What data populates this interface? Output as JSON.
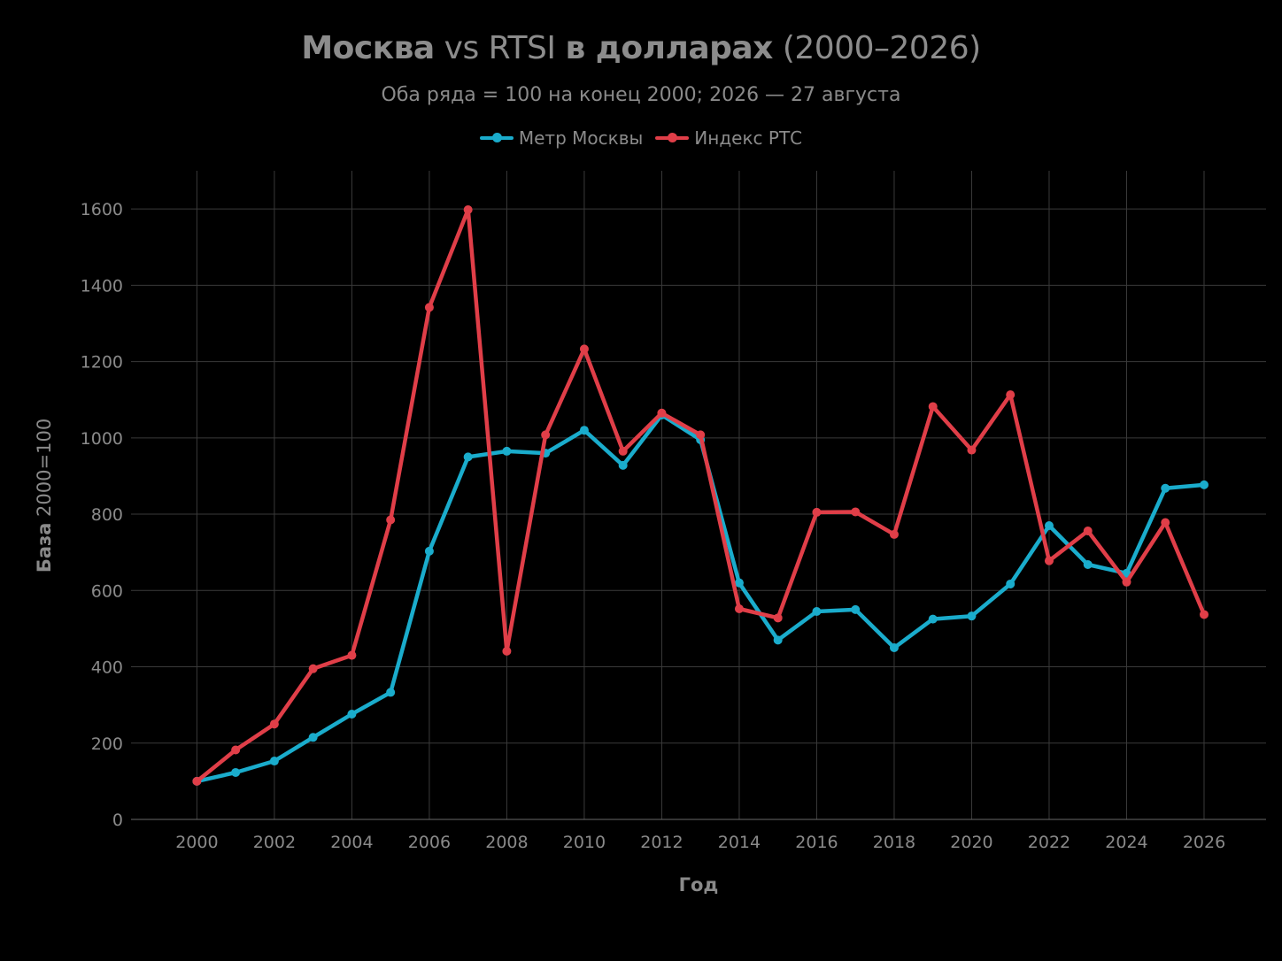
{
  "chart_data": {
    "type": "line",
    "title": {
      "part1": "Москва",
      "part2": " vs RTSI ",
      "part3": "в долларах",
      "part4": " (2000–2026)"
    },
    "subtitle": "Оба ряда = 100 на конец 2000; 2026 — 27 августа",
    "xlabel": "Год",
    "ylabel": {
      "bold": "База",
      "normal": " 2000=100"
    },
    "xlim": [
      1998.3,
      2027.6
    ],
    "ylim": [
      0,
      1700
    ],
    "x_ticks": [
      2000,
      2002,
      2004,
      2006,
      2008,
      2010,
      2012,
      2014,
      2016,
      2018,
      2020,
      2022,
      2024,
      2026
    ],
    "y_ticks": [
      0,
      200,
      400,
      600,
      800,
      1000,
      1200,
      1400,
      1600
    ],
    "grid": true,
    "legend_position": "top-center",
    "x": [
      2000,
      2001,
      2002,
      2003,
      2004,
      2005,
      2006,
      2007,
      2008,
      2009,
      2010,
      2011,
      2012,
      2013,
      2014,
      2015,
      2016,
      2017,
      2018,
      2019,
      2020,
      2021,
      2022,
      2023,
      2024,
      2025,
      2026
    ],
    "series": [
      {
        "name": "Метр Москвы",
        "color": "#1aaccc",
        "values": [
          100,
          123,
          153,
          215,
          276,
          333,
          703,
          950,
          965,
          960,
          1020,
          928,
          1060,
          995,
          620,
          470,
          545,
          550,
          450,
          525,
          533,
          617,
          770,
          668,
          645,
          868,
          877
        ]
      },
      {
        "name": "Индекс РТС",
        "color": "#e03e48",
        "values": [
          100,
          182,
          250,
          395,
          430,
          785,
          1342,
          1598,
          441,
          1008,
          1233,
          965,
          1065,
          1008,
          552,
          528,
          805,
          806,
          747,
          1082,
          968,
          1113,
          678,
          756,
          622,
          778,
          537
        ]
      }
    ]
  }
}
